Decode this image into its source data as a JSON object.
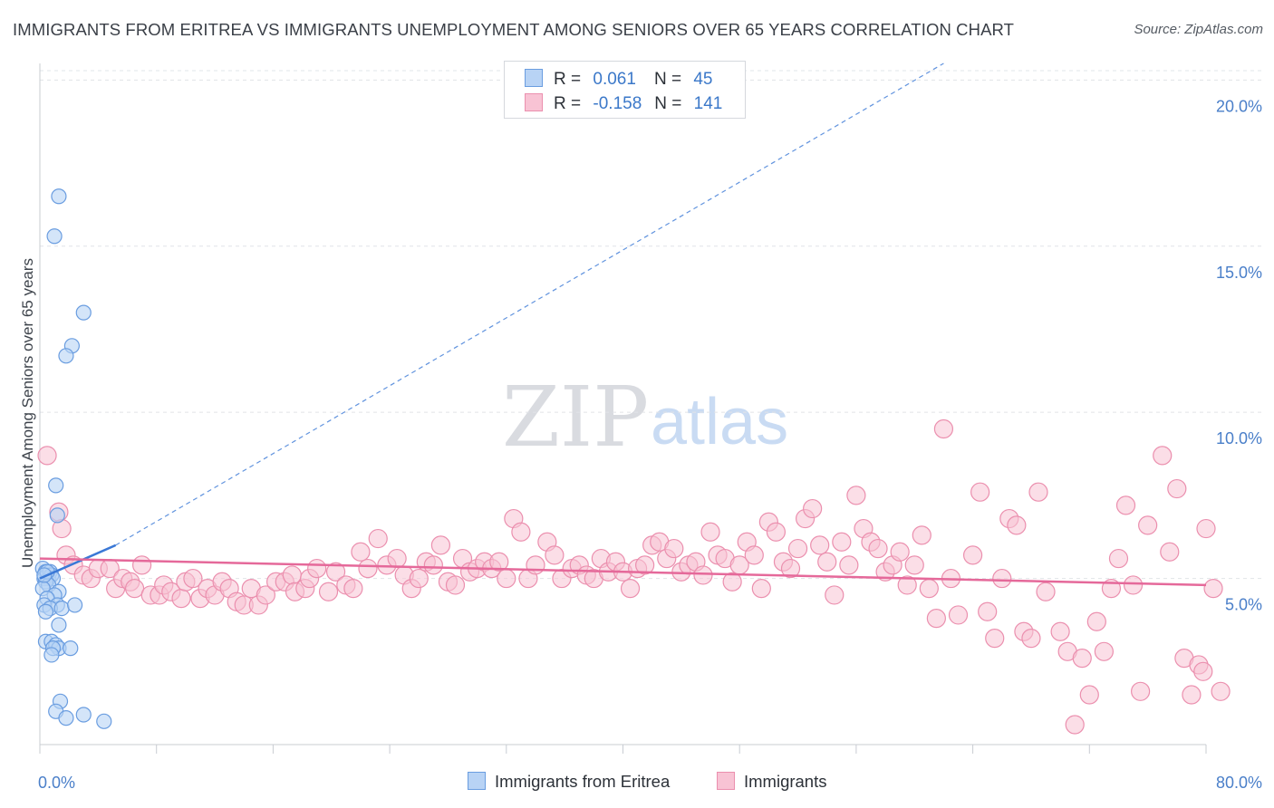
{
  "header": {
    "title": "IMMIGRANTS FROM ERITREA VS IMMIGRANTS UNEMPLOYMENT AMONG SENIORS OVER 65 YEARS CORRELATION CHART",
    "source": "Source: ZipAtlas.com"
  },
  "watermark": {
    "zip": "ZIP",
    "atlas": "atlas"
  },
  "colors": {
    "blue_fill": "#b8d3f5",
    "blue_stroke": "#6a9de0",
    "blue_line": "#3a78d6",
    "pink_fill": "#f8c3d4",
    "pink_stroke": "#eb8fae",
    "pink_line": "#e5699a",
    "grid": "#e1e4e8",
    "tick_text": "#4a7fc9"
  },
  "legend_top": [
    {
      "r_label": "R =",
      "r_value": "0.061",
      "n_label": "N =",
      "n_value": "45",
      "color": "blue"
    },
    {
      "r_label": "R =",
      "r_value": "-0.158",
      "n_label": "N =",
      "n_value": "141",
      "color": "pink"
    }
  ],
  "legend_bottom": [
    {
      "label": "Immigrants from Eritrea",
      "color": "blue"
    },
    {
      "label": "Immigrants",
      "color": "pink"
    }
  ],
  "chart_data": {
    "type": "scatter",
    "xlabel": "",
    "ylabel": "Unemployment Among Seniors over 65 years",
    "xlim": [
      0,
      80
    ],
    "ylim": [
      0,
      20.5
    ],
    "x_tick_labels": [
      {
        "value": 0,
        "label": "0.0%"
      },
      {
        "value": 80,
        "label": "80.0%"
      }
    ],
    "x_tick_marks": [
      0,
      8,
      16,
      24,
      32,
      40,
      48,
      56,
      64,
      72,
      80
    ],
    "y_ticks": [
      {
        "value": 5,
        "label": "5.0%"
      },
      {
        "value": 10,
        "label": "10.0%"
      },
      {
        "value": 15,
        "label": "15.0%"
      },
      {
        "value": 20,
        "label": "20.0%"
      }
    ],
    "grid": true,
    "legend_position": "top-center",
    "series": [
      {
        "name": "Immigrants from Eritrea",
        "color": "blue",
        "points": [
          [
            1.3,
            16.5
          ],
          [
            1.0,
            15.3
          ],
          [
            3.0,
            13.0
          ],
          [
            2.2,
            12.0
          ],
          [
            1.8,
            11.7
          ],
          [
            1.1,
            7.8
          ],
          [
            1.2,
            6.9
          ],
          [
            0.2,
            5.3
          ],
          [
            0.4,
            5.2
          ],
          [
            0.5,
            5.1
          ],
          [
            0.6,
            5.0
          ],
          [
            0.3,
            5.0
          ],
          [
            0.7,
            5.2
          ],
          [
            0.8,
            5.1
          ],
          [
            0.9,
            5.0
          ],
          [
            0.4,
            4.9
          ],
          [
            0.6,
            4.8
          ],
          [
            0.2,
            4.7
          ],
          [
            0.5,
            5.2
          ],
          [
            0.3,
            5.1
          ],
          [
            1.3,
            4.6
          ],
          [
            1.0,
            4.5
          ],
          [
            0.5,
            4.4
          ],
          [
            1.2,
            4.2
          ],
          [
            0.3,
            4.2
          ],
          [
            0.7,
            4.1
          ],
          [
            0.4,
            4.0
          ],
          [
            1.5,
            4.1
          ],
          [
            2.4,
            4.2
          ],
          [
            1.3,
            3.6
          ],
          [
            0.4,
            3.1
          ],
          [
            0.8,
            3.1
          ],
          [
            1.1,
            3.0
          ],
          [
            1.3,
            2.9
          ],
          [
            2.1,
            2.9
          ],
          [
            0.9,
            2.9
          ],
          [
            0.8,
            2.7
          ],
          [
            1.4,
            1.3
          ],
          [
            1.1,
            1.0
          ],
          [
            1.8,
            0.8
          ],
          [
            3.0,
            0.9
          ],
          [
            4.4,
            0.7
          ]
        ],
        "trend_solid": {
          "x": [
            0,
            5.2
          ],
          "y": [
            5.0,
            6.0
          ]
        },
        "trend_dashed": {
          "x": [
            5.2,
            62
          ],
          "y": [
            6.0,
            20.5
          ]
        }
      },
      {
        "name": "Immigrants",
        "color": "pink",
        "points": [
          [
            0.5,
            8.7
          ],
          [
            1.3,
            7.0
          ],
          [
            1.5,
            6.5
          ],
          [
            1.8,
            5.7
          ],
          [
            2.3,
            5.4
          ],
          [
            3.0,
            5.1
          ],
          [
            3.5,
            5.0
          ],
          [
            4.0,
            5.3
          ],
          [
            4.8,
            5.3
          ],
          [
            5.2,
            4.7
          ],
          [
            5.7,
            5.0
          ],
          [
            6.2,
            4.9
          ],
          [
            6.5,
            4.7
          ],
          [
            7.0,
            5.4
          ],
          [
            7.6,
            4.5
          ],
          [
            8.2,
            4.5
          ],
          [
            8.5,
            4.8
          ],
          [
            9.0,
            4.6
          ],
          [
            9.7,
            4.4
          ],
          [
            10.0,
            4.9
          ],
          [
            10.5,
            5.0
          ],
          [
            11.0,
            4.4
          ],
          [
            11.5,
            4.7
          ],
          [
            12.0,
            4.5
          ],
          [
            12.5,
            4.9
          ],
          [
            13.0,
            4.7
          ],
          [
            13.5,
            4.3
          ],
          [
            14.0,
            4.2
          ],
          [
            14.5,
            4.7
          ],
          [
            15.0,
            4.2
          ],
          [
            15.5,
            4.5
          ],
          [
            16.2,
            4.9
          ],
          [
            16.8,
            4.9
          ],
          [
            17.3,
            5.1
          ],
          [
            17.5,
            4.6
          ],
          [
            18.2,
            4.7
          ],
          [
            18.5,
            5.0
          ],
          [
            19.0,
            5.3
          ],
          [
            19.8,
            4.6
          ],
          [
            20.3,
            5.2
          ],
          [
            21.0,
            4.8
          ],
          [
            21.5,
            4.7
          ],
          [
            22.0,
            5.8
          ],
          [
            22.5,
            5.3
          ],
          [
            23.2,
            6.2
          ],
          [
            23.8,
            5.4
          ],
          [
            24.5,
            5.6
          ],
          [
            25.0,
            5.1
          ],
          [
            25.5,
            4.7
          ],
          [
            26.0,
            5.0
          ],
          [
            26.5,
            5.5
          ],
          [
            27.0,
            5.4
          ],
          [
            27.5,
            6.0
          ],
          [
            28.0,
            4.9
          ],
          [
            28.5,
            4.8
          ],
          [
            29.0,
            5.6
          ],
          [
            29.5,
            5.2
          ],
          [
            30.0,
            5.3
          ],
          [
            30.5,
            5.5
          ],
          [
            31.0,
            5.3
          ],
          [
            31.5,
            5.5
          ],
          [
            32.0,
            5.0
          ],
          [
            32.5,
            6.8
          ],
          [
            33.0,
            6.4
          ],
          [
            33.5,
            5.0
          ],
          [
            34.0,
            5.4
          ],
          [
            34.8,
            6.1
          ],
          [
            35.3,
            5.7
          ],
          [
            35.8,
            5.0
          ],
          [
            36.5,
            5.3
          ],
          [
            37.0,
            5.4
          ],
          [
            37.5,
            5.1
          ],
          [
            38.0,
            5.0
          ],
          [
            38.5,
            5.6
          ],
          [
            39.0,
            5.2
          ],
          [
            39.5,
            5.5
          ],
          [
            40.0,
            5.2
          ],
          [
            40.5,
            4.7
          ],
          [
            41.0,
            5.3
          ],
          [
            41.5,
            5.4
          ],
          [
            42.0,
            6.0
          ],
          [
            42.5,
            6.1
          ],
          [
            43.0,
            5.6
          ],
          [
            43.5,
            5.9
          ],
          [
            44.0,
            5.2
          ],
          [
            44.5,
            5.4
          ],
          [
            45.0,
            5.5
          ],
          [
            45.5,
            5.1
          ],
          [
            46.0,
            6.4
          ],
          [
            46.5,
            5.7
          ],
          [
            47.0,
            5.6
          ],
          [
            47.5,
            4.9
          ],
          [
            48.0,
            5.4
          ],
          [
            48.5,
            6.1
          ],
          [
            49.0,
            5.7
          ],
          [
            49.5,
            4.7
          ],
          [
            50.0,
            6.7
          ],
          [
            50.5,
            6.4
          ],
          [
            51.0,
            5.5
          ],
          [
            51.5,
            5.3
          ],
          [
            52.0,
            5.9
          ],
          [
            52.5,
            6.8
          ],
          [
            53.0,
            7.1
          ],
          [
            53.5,
            6.0
          ],
          [
            54.0,
            5.5
          ],
          [
            54.5,
            4.5
          ],
          [
            55.0,
            6.1
          ],
          [
            55.5,
            5.4
          ],
          [
            56.0,
            7.5
          ],
          [
            56.5,
            6.5
          ],
          [
            57.0,
            6.1
          ],
          [
            57.5,
            5.9
          ],
          [
            58.0,
            5.2
          ],
          [
            58.5,
            5.4
          ],
          [
            59.0,
            5.8
          ],
          [
            59.5,
            4.8
          ],
          [
            60.0,
            5.4
          ],
          [
            60.5,
            6.3
          ],
          [
            61.0,
            4.7
          ],
          [
            61.5,
            3.8
          ],
          [
            62.0,
            9.5
          ],
          [
            62.5,
            5.0
          ],
          [
            63.0,
            3.9
          ],
          [
            64.0,
            5.7
          ],
          [
            64.5,
            7.6
          ],
          [
            65.0,
            4.0
          ],
          [
            65.5,
            3.2
          ],
          [
            66.0,
            5.0
          ],
          [
            66.5,
            6.8
          ],
          [
            67.0,
            6.6
          ],
          [
            67.5,
            3.4
          ],
          [
            68.0,
            3.2
          ],
          [
            68.5,
            7.6
          ],
          [
            69.0,
            4.6
          ],
          [
            70.0,
            3.4
          ],
          [
            70.5,
            2.8
          ],
          [
            71.0,
            0.6
          ],
          [
            71.5,
            2.6
          ],
          [
            72.0,
            1.5
          ],
          [
            72.5,
            3.7
          ],
          [
            73.0,
            2.8
          ],
          [
            73.5,
            4.7
          ],
          [
            74.0,
            5.6
          ],
          [
            74.5,
            7.2
          ],
          [
            75.0,
            4.8
          ],
          [
            75.5,
            1.6
          ],
          [
            76.0,
            6.6
          ],
          [
            77.0,
            8.7
          ],
          [
            77.5,
            5.8
          ],
          [
            78.0,
            7.7
          ],
          [
            78.5,
            2.6
          ],
          [
            79.0,
            1.5
          ],
          [
            79.5,
            2.4
          ],
          [
            79.8,
            2.2
          ],
          [
            80.0,
            6.5
          ],
          [
            80.5,
            4.7
          ],
          [
            81.0,
            1.6
          ]
        ],
        "trend_solid": {
          "x": [
            0,
            80
          ],
          "y": [
            5.6,
            4.8
          ]
        }
      }
    ]
  }
}
